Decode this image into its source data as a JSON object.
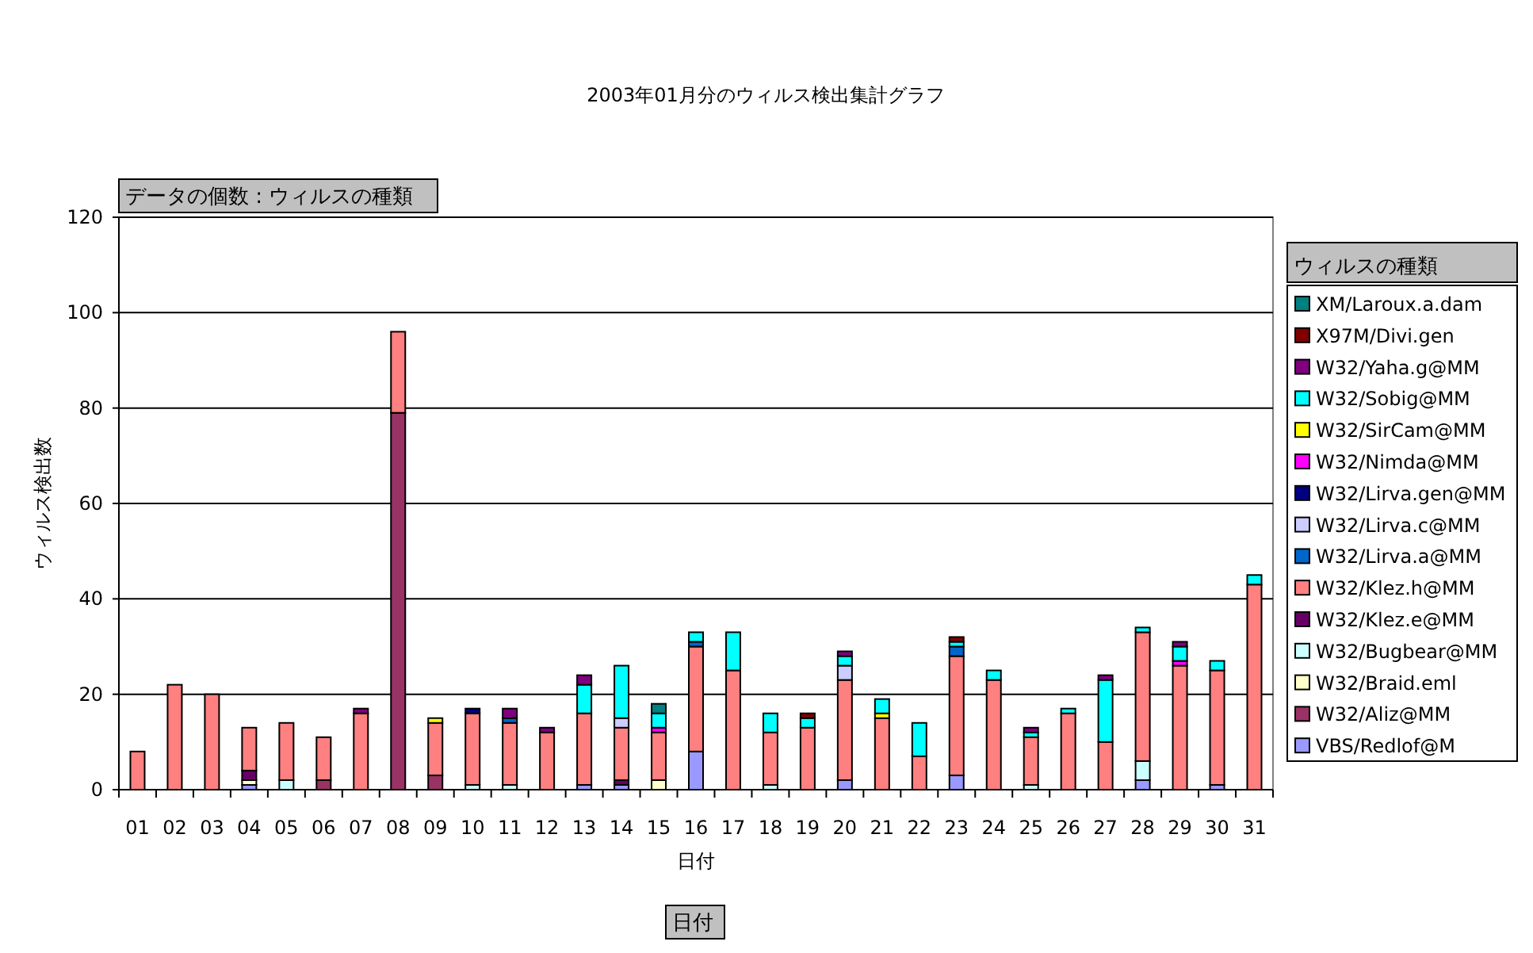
{
  "chart_data": {
    "type": "bar",
    "title": "2003年01月分のウィルス検出集計グラフ",
    "xlabel": "日付",
    "ylabel": "ウィルス検出数",
    "legend_title": "ウィルスの種類",
    "annotations": [
      "データの個数 : ウィルスの種類",
      "日付"
    ],
    "categories": [
      "01",
      "02",
      "03",
      "04",
      "05",
      "06",
      "07",
      "08",
      "09",
      "10",
      "11",
      "12",
      "13",
      "14",
      "15",
      "16",
      "17",
      "18",
      "19",
      "20",
      "21",
      "22",
      "23",
      "24",
      "25",
      "26",
      "27",
      "28",
      "29",
      "30",
      "31"
    ],
    "stacked": true,
    "ylim": [
      0,
      120
    ],
    "yticks": [
      0,
      20,
      40,
      60,
      80,
      100,
      120
    ],
    "grid": "y",
    "legend": "right",
    "series": [
      {
        "name": "VBS/Redlof@M",
        "color": "#9999ff",
        "values": [
          null,
          null,
          null,
          1,
          null,
          null,
          null,
          null,
          null,
          null,
          null,
          null,
          1,
          1,
          null,
          8,
          null,
          null,
          null,
          2,
          null,
          null,
          3,
          null,
          null,
          null,
          null,
          2,
          null,
          1,
          null
        ]
      },
      {
        "name": "W32/Aliz@MM",
        "color": "#993366",
        "values": [
          null,
          null,
          null,
          null,
          null,
          2,
          null,
          79,
          3,
          null,
          null,
          null,
          null,
          null,
          null,
          null,
          null,
          null,
          null,
          null,
          null,
          null,
          null,
          null,
          null,
          null,
          null,
          null,
          null,
          null,
          null
        ]
      },
      {
        "name": "W32/Braid.eml",
        "color": "#ffffcc",
        "values": [
          null,
          null,
          null,
          1,
          null,
          null,
          null,
          null,
          null,
          null,
          null,
          null,
          null,
          null,
          2,
          null,
          null,
          null,
          null,
          null,
          null,
          null,
          null,
          null,
          null,
          null,
          null,
          null,
          null,
          null,
          null
        ]
      },
      {
        "name": "W32/Bugbear@MM",
        "color": "#ccffff",
        "values": [
          null,
          null,
          null,
          null,
          2,
          null,
          null,
          null,
          null,
          1,
          1,
          null,
          null,
          null,
          null,
          null,
          null,
          1,
          null,
          null,
          null,
          null,
          null,
          null,
          1,
          null,
          null,
          4,
          null,
          null,
          null
        ]
      },
      {
        "name": "W32/Klez.e@MM",
        "color": "#660066",
        "values": [
          null,
          null,
          null,
          2,
          null,
          null,
          null,
          null,
          null,
          null,
          null,
          null,
          null,
          1,
          null,
          null,
          null,
          null,
          null,
          null,
          null,
          null,
          null,
          null,
          null,
          null,
          null,
          null,
          null,
          null,
          null
        ]
      },
      {
        "name": "W32/Klez.h@MM",
        "color": "#ff8080",
        "values": [
          8,
          22,
          20,
          9,
          12,
          9,
          16,
          17,
          11,
          15,
          13,
          12,
          15,
          11,
          10,
          22,
          25,
          11,
          13,
          21,
          15,
          7,
          25,
          23,
          10,
          16,
          10,
          27,
          26,
          24,
          43
        ]
      },
      {
        "name": "W32/Lirva.a@MM",
        "color": "#0066cc",
        "values": [
          null,
          null,
          null,
          null,
          null,
          null,
          null,
          null,
          null,
          null,
          1,
          null,
          null,
          null,
          null,
          1,
          null,
          null,
          null,
          null,
          null,
          null,
          2,
          null,
          null,
          null,
          null,
          null,
          null,
          null,
          null
        ]
      },
      {
        "name": "W32/Lirva.c@MM",
        "color": "#ccccff",
        "values": [
          null,
          null,
          null,
          null,
          null,
          null,
          null,
          null,
          null,
          null,
          null,
          null,
          null,
          2,
          null,
          null,
          null,
          null,
          null,
          3,
          null,
          null,
          null,
          null,
          null,
          null,
          null,
          null,
          null,
          null,
          null
        ]
      },
      {
        "name": "W32/Lirva.gen@MM",
        "color": "#000080",
        "values": [
          null,
          null,
          null,
          null,
          null,
          null,
          null,
          null,
          null,
          1,
          null,
          null,
          null,
          null,
          null,
          null,
          null,
          null,
          null,
          null,
          null,
          null,
          null,
          null,
          null,
          null,
          null,
          null,
          null,
          null,
          null
        ]
      },
      {
        "name": "W32/Nimda@MM",
        "color": "#ff00ff",
        "values": [
          null,
          null,
          null,
          null,
          null,
          null,
          null,
          null,
          null,
          null,
          null,
          null,
          null,
          null,
          1,
          null,
          null,
          null,
          null,
          null,
          null,
          null,
          null,
          null,
          null,
          null,
          null,
          null,
          1,
          null,
          null
        ]
      },
      {
        "name": "W32/SirCam@MM",
        "color": "#ffff00",
        "values": [
          null,
          null,
          null,
          null,
          null,
          null,
          null,
          null,
          1,
          null,
          null,
          null,
          null,
          null,
          null,
          null,
          null,
          null,
          null,
          null,
          1,
          null,
          null,
          null,
          null,
          null,
          null,
          null,
          null,
          null,
          null
        ]
      },
      {
        "name": "W32/Sobig@MM",
        "color": "#00ffff",
        "values": [
          null,
          null,
          null,
          null,
          null,
          null,
          null,
          null,
          null,
          null,
          null,
          null,
          6,
          11,
          3,
          2,
          8,
          4,
          2,
          2,
          3,
          7,
          1,
          2,
          1,
          1,
          13,
          1,
          3,
          2,
          2
        ]
      },
      {
        "name": "W32/Yaha.g@MM",
        "color": "#800080",
        "values": [
          null,
          null,
          null,
          null,
          null,
          null,
          1,
          null,
          null,
          null,
          2,
          1,
          2,
          null,
          null,
          null,
          null,
          null,
          null,
          1,
          null,
          null,
          null,
          null,
          1,
          null,
          1,
          null,
          1,
          null,
          null
        ]
      },
      {
        "name": "X97M/Divi.gen",
        "color": "#800000",
        "values": [
          null,
          null,
          null,
          null,
          null,
          null,
          null,
          null,
          null,
          null,
          null,
          null,
          null,
          null,
          null,
          null,
          null,
          null,
          1,
          null,
          null,
          null,
          1,
          null,
          null,
          null,
          null,
          null,
          null,
          null,
          null
        ]
      },
      {
        "name": "XM/Laroux.a.dam",
        "color": "#008080",
        "values": [
          null,
          null,
          null,
          null,
          null,
          null,
          null,
          null,
          null,
          null,
          null,
          null,
          null,
          null,
          2,
          null,
          null,
          null,
          null,
          null,
          null,
          null,
          null,
          null,
          null,
          null,
          null,
          null,
          null,
          null,
          null
        ]
      }
    ]
  }
}
